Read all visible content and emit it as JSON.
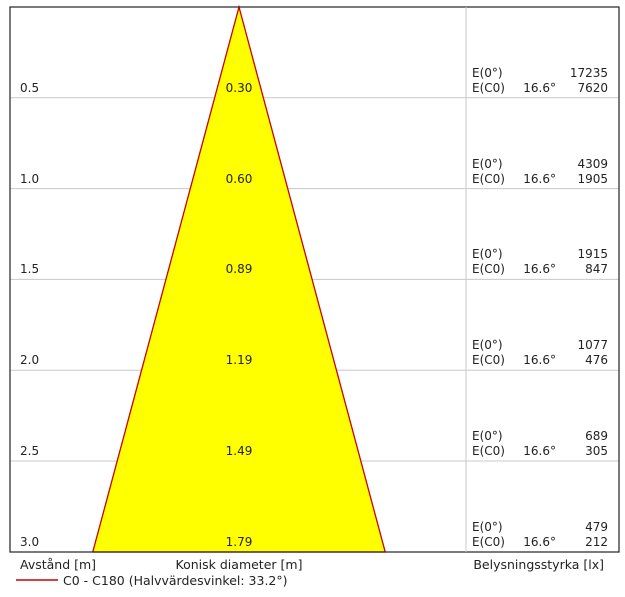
{
  "rows": [
    {
      "distance": "0.5",
      "diameter": "0.30",
      "e0_label": "E(0°)",
      "e0_value": "17235",
      "ec0_label": "E(C0)",
      "ec0_angle": "16.6°",
      "ec0_value": "7620"
    },
    {
      "distance": "1.0",
      "diameter": "0.60",
      "e0_label": "E(0°)",
      "e0_value": "4309",
      "ec0_label": "E(C0)",
      "ec0_angle": "16.6°",
      "ec0_value": "1905"
    },
    {
      "distance": "1.5",
      "diameter": "0.89",
      "e0_label": "E(0°)",
      "e0_value": "1915",
      "ec0_label": "E(C0)",
      "ec0_angle": "16.6°",
      "ec0_value": "847"
    },
    {
      "distance": "2.0",
      "diameter": "1.19",
      "e0_label": "E(0°)",
      "e0_value": "1077",
      "ec0_label": "E(C0)",
      "ec0_angle": "16.6°",
      "ec0_value": "476"
    },
    {
      "distance": "2.5",
      "diameter": "1.49",
      "e0_label": "E(0°)",
      "e0_value": "689",
      "ec0_label": "E(C0)",
      "ec0_angle": "16.6°",
      "ec0_value": "305"
    },
    {
      "distance": "3.0",
      "diameter": "1.79",
      "e0_label": "E(0°)",
      "e0_value": "479",
      "ec0_label": "E(C0)",
      "ec0_angle": "16.6°",
      "ec0_value": "212"
    }
  ],
  "labels": {
    "distance_axis": "Avstånd [m]",
    "diameter_axis": "Konisk diameter [m]",
    "illuminance_axis": "Belysningsstyrka [lx]",
    "legend": "C0 - C180 (Halvvärdesvinkel: 33.2°)"
  },
  "cone": {
    "half_value_angle_deg": 33.2,
    "max_distance_m": 3.0
  },
  "colors": {
    "cone_fill": "#ffff00",
    "cone_stroke": "#cc0000",
    "grid": "#c8c8c8",
    "frame": "#222222"
  }
}
